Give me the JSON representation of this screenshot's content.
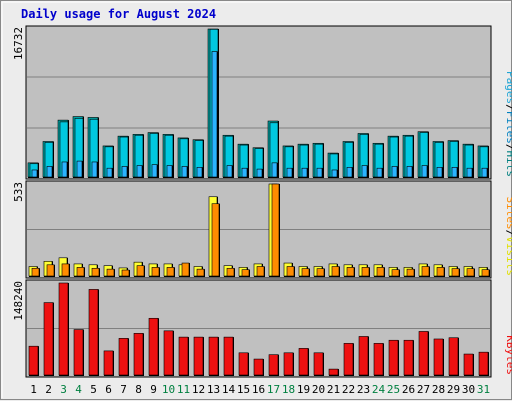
{
  "title": "Daily usage for August 2024",
  "colors": {
    "hits": "#00a3a3",
    "files": "#00c8e0",
    "pages": "#2ab3ff",
    "visits": "#ffff33",
    "sites": "#ff8c00",
    "kbytes": "#ee1111",
    "weekend_day": "#008040",
    "weekday": "#000000",
    "title": "#0000cc",
    "panel_bg": "#c0c0c0"
  },
  "legend": {
    "panel1": [
      {
        "key": "pages",
        "label": "Pages",
        "color": "#1ea5d5"
      },
      {
        "key": "sep1",
        "label": "/",
        "color": "#000000"
      },
      {
        "key": "files",
        "label": "Files",
        "color": "#0080c0"
      },
      {
        "key": "sep2",
        "label": "/",
        "color": "#000000"
      },
      {
        "key": "hits",
        "label": "Hits",
        "color": "#008080"
      }
    ],
    "panel2": [
      {
        "key": "sites",
        "label": "Sites",
        "color": "#ff8c00"
      },
      {
        "key": "sep1",
        "label": "/",
        "color": "#000000"
      },
      {
        "key": "visits",
        "label": "Visits",
        "color": "#e0e000"
      }
    ],
    "panel3": [
      {
        "key": "kbytes",
        "label": "KBytes",
        "color": "#ee1111"
      }
    ]
  },
  "chart_data": {
    "type": "bar",
    "title": "Daily usage for August 2024",
    "categories": [
      "1",
      "2",
      "3",
      "4",
      "5",
      "6",
      "7",
      "8",
      "9",
      "10",
      "11",
      "12",
      "13",
      "14",
      "15",
      "16",
      "17",
      "18",
      "19",
      "20",
      "21",
      "22",
      "23",
      "24",
      "25",
      "26",
      "27",
      "28",
      "29",
      "30",
      "31"
    ],
    "weekend_days": [
      "3",
      "4",
      "10",
      "11",
      "17",
      "18",
      "24",
      "25",
      "31"
    ],
    "panels": [
      {
        "id": "hits-files-pages",
        "ymax": 16732,
        "ytick_label": "16732",
        "grid": true,
        "series": [
          {
            "name": "Hits",
            "values": [
              1700,
              4100,
              6500,
              6900,
              6800,
              3600,
              4700,
              4900,
              5100,
              4900,
              4500,
              4300,
              16732,
              4800,
              3800,
              3400,
              6400,
              3600,
              3800,
              3900,
              2800,
              4100,
              5000,
              3900,
              4700,
              4800,
              5200,
              4100,
              4200,
              3800,
              3600
            ]
          },
          {
            "name": "Files",
            "values": [
              1600,
              4000,
              6300,
              6700,
              6600,
              3500,
              4600,
              4800,
              5000,
              4800,
              4400,
              4200,
              16700,
              4700,
              3700,
              3300,
              6200,
              3500,
              3700,
              3800,
              2700,
              4000,
              4900,
              3800,
              4600,
              4700,
              5100,
              4000,
              4100,
              3700,
              3500
            ]
          },
          {
            "name": "Pages",
            "values": [
              900,
              1300,
              1800,
              1900,
              1800,
              1100,
              1300,
              1400,
              1500,
              1400,
              1300,
              1200,
              14200,
              1400,
              1100,
              1000,
              1700,
              1100,
              1100,
              1100,
              900,
              1200,
              1400,
              1100,
              1300,
              1300,
              1400,
              1200,
              1200,
              1100,
              1100
            ]
          }
        ]
      },
      {
        "id": "visits-sites",
        "ymax": 533,
        "ytick_label": "533",
        "grid": true,
        "series": [
          {
            "name": "Visits",
            "values": [
              60,
              90,
              110,
              75,
              70,
              65,
              52,
              85,
              75,
              75,
              70,
              60,
              460,
              65,
              55,
              75,
              533,
              80,
              60,
              60,
              75,
              70,
              70,
              70,
              55,
              55,
              75,
              70,
              60,
              60,
              55
            ]
          },
          {
            "name": "Sites",
            "values": [
              50,
              70,
              75,
              55,
              50,
              45,
              40,
              65,
              55,
              55,
              80,
              45,
              420,
              50,
              42,
              60,
              533,
              60,
              48,
              48,
              60,
              55,
              55,
              55,
              42,
              45,
              60,
              55,
              48,
              48,
              42
            ]
          }
        ]
      },
      {
        "id": "kbytes",
        "ymax": 148240,
        "ytick_label": "148240",
        "grid": true,
        "series": [
          {
            "name": "KBytes",
            "values": [
              47500,
              117000,
              148240,
              74000,
              138000,
              40000,
              60000,
              68000,
              92000,
              72000,
              62000,
              62000,
              62000,
              62000,
              37000,
              27000,
              34000,
              37000,
              44000,
              37000,
              11000,
              52000,
              63000,
              52000,
              57000,
              57000,
              71000,
              59000,
              61000,
              35000,
              38000
            ]
          }
        ]
      }
    ]
  }
}
